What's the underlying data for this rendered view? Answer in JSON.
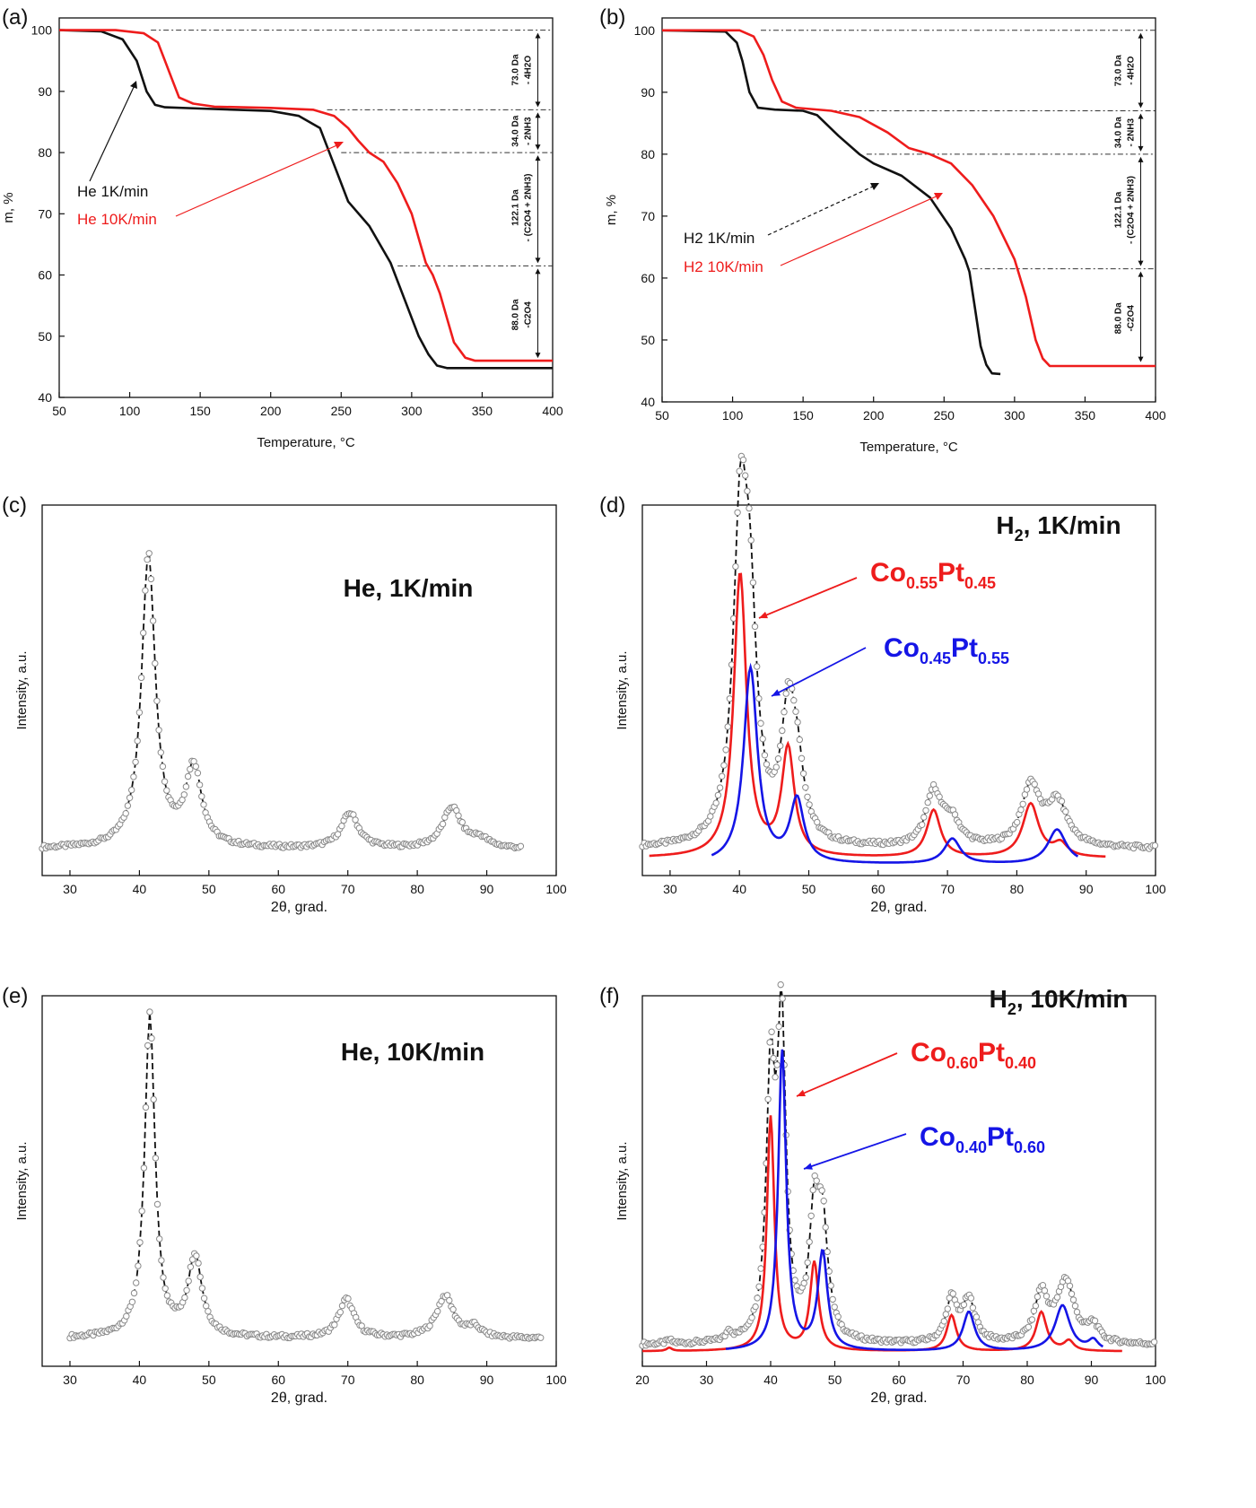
{
  "panel_labels": [
    "(a)",
    "(b)",
    "(c)",
    "(d)",
    "(e)",
    "(f)"
  ],
  "colors": {
    "black": "#111111",
    "red": "#ee1c1c",
    "blue": "#1515e6",
    "gray_markers": "#8a8a8a"
  },
  "chart_data": [
    {
      "id": "a",
      "type": "line",
      "xlabel": "Temperature, °C",
      "ylabel": "m, %",
      "xlim": [
        50,
        400
      ],
      "ylim": [
        40,
        102
      ],
      "xticks": [
        50,
        100,
        150,
        200,
        250,
        300,
        350,
        400
      ],
      "yticks": [
        40,
        50,
        60,
        70,
        80,
        90,
        100
      ],
      "series": [
        {
          "name": "He 1K/min",
          "color": "#111111",
          "x": [
            50,
            80,
            95,
            105,
            112,
            118,
            125,
            150,
            200,
            220,
            235,
            245,
            255,
            270,
            285,
            295,
            305,
            312,
            318,
            325,
            400
          ],
          "y": [
            100,
            99.8,
            98.5,
            95,
            90,
            87.8,
            87.4,
            87.2,
            86.8,
            86,
            84,
            78,
            72,
            68,
            62,
            56,
            50,
            47,
            45.2,
            44.8,
            44.8
          ]
        },
        {
          "name": "He 10K/min",
          "color": "#ee1c1c",
          "x": [
            50,
            90,
            110,
            120,
            125,
            130,
            135,
            145,
            160,
            200,
            230,
            245,
            255,
            262,
            270,
            280,
            290,
            300,
            305,
            310,
            315,
            320,
            325,
            330,
            338,
            345,
            400
          ],
          "y": [
            100,
            100,
            99.5,
            98,
            95,
            92,
            89,
            88,
            87.5,
            87.3,
            87,
            86,
            84,
            82,
            80,
            78.5,
            75,
            70,
            66,
            62,
            60,
            57,
            53,
            49,
            46.5,
            46,
            46
          ]
        }
      ],
      "annotations": [
        "73.0 Da",
        "- 4H2O",
        "34.0 Da",
        "- 2NH3",
        "122.1 Da",
        "- (C2O4 + 2NH3)",
        "88.0 Da",
        "-C2O4"
      ],
      "legend": [
        "He 1K/min",
        "He 10K/min"
      ]
    },
    {
      "id": "b",
      "type": "line",
      "xlabel": "Temperature, °C",
      "ylabel": "m, %",
      "xlim": [
        50,
        400
      ],
      "ylim": [
        40,
        102
      ],
      "xticks": [
        50,
        100,
        150,
        200,
        250,
        300,
        350,
        400
      ],
      "yticks": [
        40,
        50,
        60,
        70,
        80,
        90,
        100
      ],
      "series": [
        {
          "name": "H2 1K/min",
          "color": "#111111",
          "x": [
            50,
            95,
            103,
            107,
            112,
            118,
            130,
            150,
            160,
            175,
            190,
            200,
            220,
            240,
            255,
            265,
            268,
            272,
            276,
            280,
            284,
            290
          ],
          "y": [
            100,
            99.8,
            98,
            95,
            90,
            87.5,
            87.2,
            87,
            86.3,
            83,
            80,
            78.5,
            76.5,
            73,
            68,
            63,
            61,
            55,
            49,
            46,
            44.6,
            44.5
          ]
        },
        {
          "name": "H2 10K/min",
          "color": "#ee1c1c",
          "x": [
            50,
            105,
            115,
            122,
            128,
            135,
            145,
            170,
            190,
            210,
            225,
            240,
            255,
            270,
            285,
            300,
            308,
            315,
            320,
            325,
            335,
            400
          ],
          "y": [
            100,
            100,
            99,
            96,
            92,
            88.5,
            87.5,
            87,
            86,
            83.5,
            81,
            80,
            78.5,
            75,
            70,
            63,
            57,
            50,
            47,
            45.8,
            45.8,
            45.8
          ]
        }
      ],
      "annotations": [
        "73.0 Da",
        "- 4H2O",
        "34.0 Da",
        "- 2NH3",
        "122.1 Da",
        "- (C2O4 + 2NH3)",
        "88.0 Da",
        "-C2O4"
      ],
      "legend": [
        "H2 1K/min",
        "H2 10K/min"
      ]
    },
    {
      "id": "c",
      "type": "scatter",
      "title": "He, 1K/min",
      "xlabel": "2θ, grad.",
      "ylabel": "Intensity, a.u.",
      "xlim": [
        26,
        100
      ],
      "xticks": [
        30,
        40,
        50,
        60,
        70,
        80,
        90,
        100
      ],
      "x_range": [
        26,
        95
      ],
      "baseline": 0.04,
      "peaks": [
        {
          "x": 41.3,
          "h": 1.0,
          "w": 1.2
        },
        {
          "x": 47.8,
          "h": 0.27,
          "w": 1.4
        },
        {
          "x": 70.3,
          "h": 0.12,
          "w": 1.5
        },
        {
          "x": 85.0,
          "h": 0.14,
          "w": 1.6
        },
        {
          "x": 89.0,
          "h": 0.03,
          "w": 1.5
        }
      ]
    },
    {
      "id": "d",
      "type": "scatter",
      "title": "H2, 1K/min",
      "xlabel": "2θ, grad.",
      "ylabel": "Intensity, a.u.",
      "xlim": [
        26,
        100
      ],
      "xticks": [
        30,
        40,
        50,
        60,
        70,
        80,
        90,
        100
      ],
      "x_range": [
        26,
        100
      ],
      "baseline": 0.05,
      "peaks": [
        {
          "x": 40.1,
          "h": 0.95,
          "w": 1.2
        },
        {
          "x": 41.5,
          "h": 0.62,
          "w": 1.2
        },
        {
          "x": 47.0,
          "h": 0.38,
          "w": 1.2
        },
        {
          "x": 48.3,
          "h": 0.2,
          "w": 1.2
        },
        {
          "x": 68.0,
          "h": 0.17,
          "w": 1.3
        },
        {
          "x": 70.6,
          "h": 0.08,
          "w": 1.5
        },
        {
          "x": 82.0,
          "h": 0.19,
          "w": 1.5
        },
        {
          "x": 85.8,
          "h": 0.14,
          "w": 1.8
        }
      ],
      "fits": [
        {
          "name": "Co0.55Pt0.45",
          "color": "#ee1c1c",
          "x_range": [
            27,
            93
          ],
          "baseline": 0.02,
          "peaks": [
            {
              "x": 40.1,
              "h": 0.9,
              "w": 1.1
            },
            {
              "x": 47.0,
              "h": 0.34,
              "w": 1.1
            },
            {
              "x": 68.0,
              "h": 0.15,
              "w": 1.2
            },
            {
              "x": 82.0,
              "h": 0.17,
              "w": 1.4
            },
            {
              "x": 86.3,
              "h": 0.04,
              "w": 1.2
            }
          ]
        },
        {
          "name": "Co0.45Pt0.55",
          "color": "#1515e6",
          "x_range": [
            36,
            89
          ],
          "baseline": 0.0,
          "peaks": [
            {
              "x": 41.6,
              "h": 0.62,
              "w": 1.2
            },
            {
              "x": 48.3,
              "h": 0.2,
              "w": 1.2
            },
            {
              "x": 70.7,
              "h": 0.08,
              "w": 1.4
            },
            {
              "x": 85.8,
              "h": 0.11,
              "w": 1.6
            }
          ]
        }
      ],
      "labels": [
        {
          "main1": "Co",
          "sub1": "0.55",
          "main2": "Pt",
          "sub2": "0.45",
          "color": "#ee1c1c"
        },
        {
          "main1": "Co",
          "sub1": "0.45",
          "main2": "Pt",
          "sub2": "0.55",
          "color": "#1515e6"
        }
      ]
    },
    {
      "id": "e",
      "type": "scatter",
      "title": "He, 10K/min",
      "xlabel": "2θ, grad.",
      "ylabel": "Intensity, a.u.",
      "xlim": [
        26,
        100
      ],
      "xticks": [
        30,
        40,
        50,
        60,
        70,
        80,
        90,
        100
      ],
      "x_range": [
        30,
        98
      ],
      "baseline": 0.04,
      "peaks": [
        {
          "x": 41.5,
          "h": 1.0,
          "w": 0.9
        },
        {
          "x": 48.0,
          "h": 0.25,
          "w": 1.2
        },
        {
          "x": 69.8,
          "h": 0.12,
          "w": 1.3
        },
        {
          "x": 84.0,
          "h": 0.13,
          "w": 1.5
        },
        {
          "x": 88.2,
          "h": 0.03,
          "w": 1.2
        }
      ]
    },
    {
      "id": "f",
      "type": "scatter",
      "title": "H2, 10K/min",
      "xlabel": "2θ, grad.",
      "ylabel": "Intensity, a.u.",
      "xlim": [
        20,
        100
      ],
      "xticks": [
        20,
        30,
        40,
        50,
        60,
        70,
        80,
        90,
        100
      ],
      "x_range": [
        20,
        100
      ],
      "baseline": 0.02,
      "peaks": [
        {
          "x": 24.2,
          "h": 0.01,
          "w": 0.5
        },
        {
          "x": 33.5,
          "h": 0.03,
          "w": 0.4
        },
        {
          "x": 40.0,
          "h": 0.78,
          "w": 0.8
        },
        {
          "x": 41.7,
          "h": 0.95,
          "w": 0.8
        },
        {
          "x": 46.8,
          "h": 0.35,
          "w": 0.9
        },
        {
          "x": 48.1,
          "h": 0.33,
          "w": 1.0
        },
        {
          "x": 68.2,
          "h": 0.13,
          "w": 1.0
        },
        {
          "x": 70.9,
          "h": 0.13,
          "w": 1.2
        },
        {
          "x": 82.2,
          "h": 0.15,
          "w": 1.2
        },
        {
          "x": 86.0,
          "h": 0.19,
          "w": 1.6
        },
        {
          "x": 90.3,
          "h": 0.05,
          "w": 1.0
        }
      ],
      "fits": [
        {
          "name": "Co0.60Pt0.40",
          "color": "#ee1c1c",
          "x_range": [
            20,
            95
          ],
          "baseline": 0.0,
          "peaks": [
            {
              "x": 24.2,
              "h": 0.01,
              "w": 0.5
            },
            {
              "x": 40.0,
              "h": 0.72,
              "w": 0.7
            },
            {
              "x": 46.8,
              "h": 0.27,
              "w": 0.8
            },
            {
              "x": 68.2,
              "h": 0.11,
              "w": 0.9
            },
            {
              "x": 82.2,
              "h": 0.12,
              "w": 1.0
            },
            {
              "x": 86.5,
              "h": 0.03,
              "w": 0.9
            }
          ]
        },
        {
          "name": "Co0.40Pt0.60",
          "color": "#1515e6",
          "x_range": [
            33,
            92
          ],
          "baseline": 0.0,
          "peaks": [
            {
              "x": 41.8,
              "h": 0.92,
              "w": 0.75
            },
            {
              "x": 48.1,
              "h": 0.3,
              "w": 0.9
            },
            {
              "x": 70.9,
              "h": 0.12,
              "w": 1.1
            },
            {
              "x": 85.5,
              "h": 0.14,
              "w": 1.4
            },
            {
              "x": 90.3,
              "h": 0.03,
              "w": 0.9
            }
          ]
        }
      ],
      "labels": [
        {
          "main1": "Co",
          "sub1": "0.60",
          "main2": "Pt",
          "sub2": "0.40",
          "color": "#ee1c1c"
        },
        {
          "main1": "Co",
          "sub1": "0.40",
          "main2": "Pt",
          "sub2": "0.60",
          "color": "#1515e6"
        }
      ]
    }
  ]
}
